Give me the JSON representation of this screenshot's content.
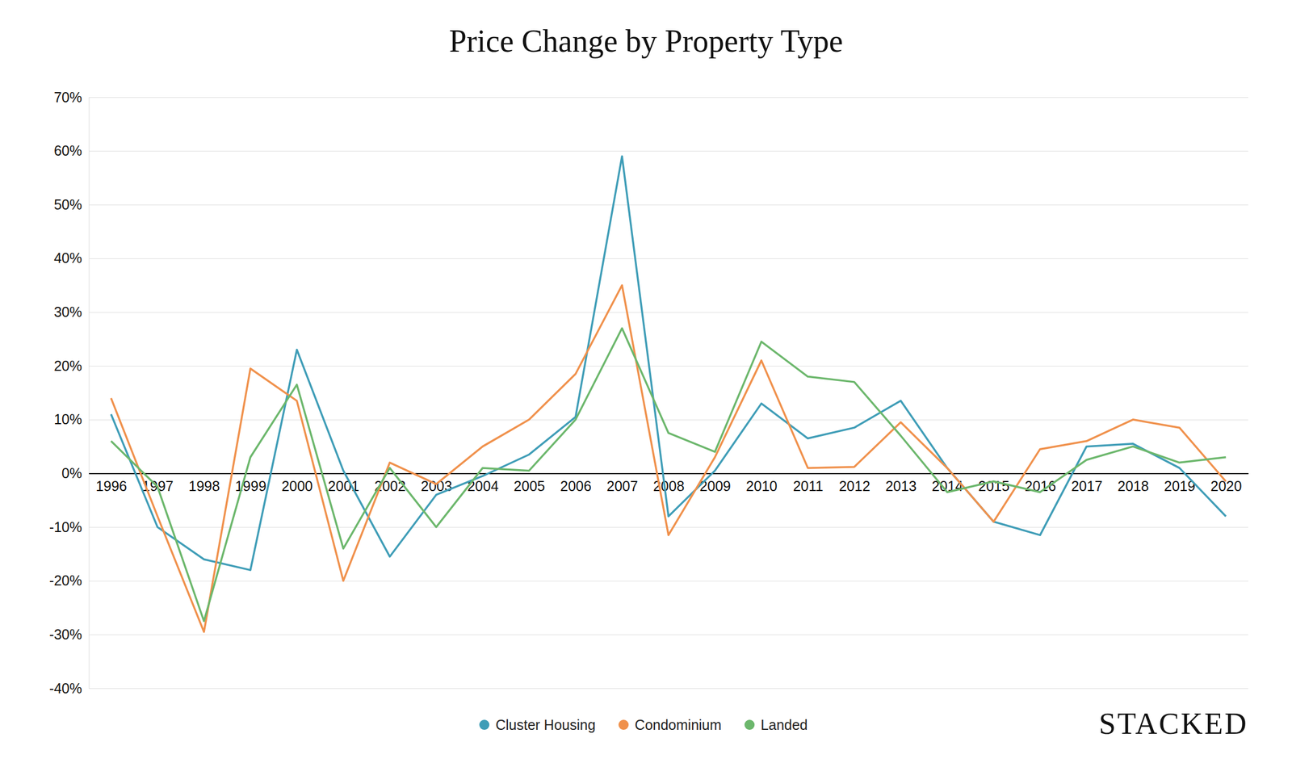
{
  "chart_data": {
    "type": "line",
    "title": "Price Change by Property Type",
    "categories": [
      "1996",
      "1997",
      "1998",
      "1999",
      "2000",
      "2001",
      "2002",
      "2003",
      "2004",
      "2005",
      "2006",
      "2007",
      "2008",
      "2009",
      "2010",
      "2011",
      "2012",
      "2013",
      "2014",
      "2015",
      "2016",
      "2017",
      "2018",
      "2019",
      "2020"
    ],
    "series": [
      {
        "name": "Cluster Housing",
        "color": "#3f9db7",
        "values": [
          11,
          -10,
          -16,
          -18,
          23,
          0.5,
          -15.5,
          -4,
          -0.5,
          3.5,
          10.5,
          59,
          -8,
          0.5,
          13,
          6.5,
          8.5,
          13.5,
          1,
          -9,
          -11.5,
          5,
          5.5,
          1,
          -8
        ]
      },
      {
        "name": "Condominium",
        "color": "#f0914c",
        "values": [
          14,
          -8,
          -29.5,
          19.5,
          13.5,
          -20,
          2,
          -2,
          5,
          10,
          18.5,
          35,
          -11.5,
          3,
          21,
          1,
          1.2,
          9.5,
          1,
          -9,
          4.5,
          6,
          10,
          8.5,
          -1.5
        ]
      },
      {
        "name": "Landed",
        "color": "#6cb76c",
        "values": [
          6,
          -2.5,
          -27.5,
          3,
          16.5,
          -14,
          1,
          -10,
          1,
          0.5,
          10,
          27,
          7.5,
          4,
          24.5,
          18,
          17,
          7,
          -3.5,
          -1.5,
          -3.5,
          2.5,
          5,
          2,
          3
        ]
      }
    ],
    "ylim": [
      -40,
      70
    ],
    "yticks": [
      {
        "value": -40,
        "label": "-40%"
      },
      {
        "value": -30,
        "label": "-30%"
      },
      {
        "value": -20,
        "label": "-20%"
      },
      {
        "value": -10,
        "label": "-10%"
      },
      {
        "value": 0,
        "label": "0%"
      },
      {
        "value": 10,
        "label": "10%"
      },
      {
        "value": 20,
        "label": "20%"
      },
      {
        "value": 30,
        "label": "30%"
      },
      {
        "value": 40,
        "label": "40%"
      },
      {
        "value": 50,
        "label": "50%"
      },
      {
        "value": 60,
        "label": "60%"
      },
      {
        "value": 70,
        "label": "70%"
      }
    ],
    "grid": true,
    "legend": "bottom",
    "annotations": [
      "STACKED"
    ]
  }
}
